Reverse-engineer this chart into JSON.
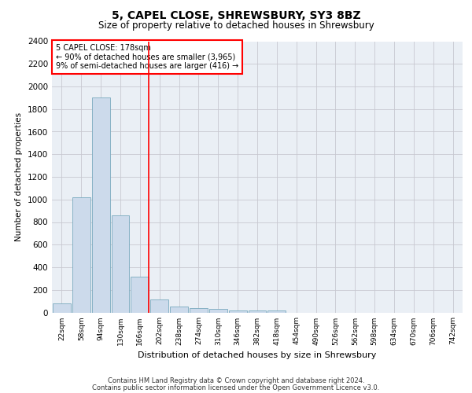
{
  "title": "5, CAPEL CLOSE, SHREWSBURY, SY3 8BZ",
  "subtitle": "Size of property relative to detached houses in Shrewsbury",
  "xlabel": "Distribution of detached houses by size in Shrewsbury",
  "ylabel": "Number of detached properties",
  "footer_line1": "Contains HM Land Registry data © Crown copyright and database right 2024.",
  "footer_line2": "Contains public sector information licensed under the Open Government Licence v3.0.",
  "bin_labels": [
    "22sqm",
    "58sqm",
    "94sqm",
    "130sqm",
    "166sqm",
    "202sqm",
    "238sqm",
    "274sqm",
    "310sqm",
    "346sqm",
    "382sqm",
    "418sqm",
    "454sqm",
    "490sqm",
    "526sqm",
    "562sqm",
    "598sqm",
    "634sqm",
    "670sqm",
    "706sqm",
    "742sqm"
  ],
  "bar_values": [
    80,
    1020,
    1900,
    860,
    320,
    115,
    50,
    40,
    30,
    20,
    20,
    20,
    0,
    0,
    0,
    0,
    0,
    0,
    0,
    0,
    0
  ],
  "bar_color": "#ccdaeb",
  "bar_edge_color": "#7aaabf",
  "grid_color": "#c8c8d0",
  "background_color": "#eaeff5",
  "annotation_text_line1": "5 CAPEL CLOSE: 178sqm",
  "annotation_text_line2": "← 90% of detached houses are smaller (3,965)",
  "annotation_text_line3": "9% of semi-detached houses are larger (416) →",
  "annotation_box_color": "white",
  "annotation_box_edge": "red",
  "red_line_color": "red",
  "ylim": [
    0,
    2400
  ],
  "yticks": [
    0,
    200,
    400,
    600,
    800,
    1000,
    1200,
    1400,
    1600,
    1800,
    2000,
    2200,
    2400
  ]
}
